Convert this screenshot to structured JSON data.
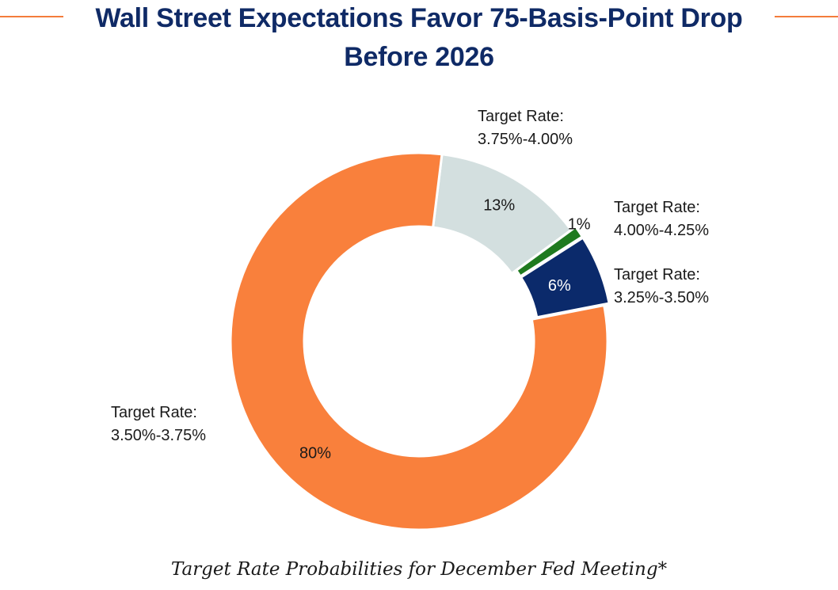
{
  "header": {
    "title_line1": "Wall Street Expectations Favor 75-Basis-Point Drop",
    "title_line2": "Before 2026"
  },
  "caption": "Target Rate Probabilities for December Fed Meeting*",
  "colors": {
    "title": "#0f2a66",
    "accent_rule": "#f47c3c"
  },
  "chart_data": {
    "type": "pie",
    "variant": "donut",
    "title": "Wall Street Expectations Favor 75-Basis-Point Drop Before 2026",
    "slices": [
      {
        "label_line1": "Target Rate:",
        "label_line2": "3.75%-4.00%",
        "value": 13,
        "value_label": "13%",
        "color": "#d3dfdf",
        "value_text_color": "#1a1a1a"
      },
      {
        "label_line1": "Target Rate:",
        "label_line2": "4.00%-4.25%",
        "value": 1,
        "value_label": "1%",
        "color": "#1f7a1f",
        "value_text_color": "#1a1a1a"
      },
      {
        "label_line1": "Target Rate:",
        "label_line2": "3.25%-3.50%",
        "value": 6,
        "value_label": "6%",
        "color": "#0b2a6b",
        "value_text_color": "#ffffff"
      },
      {
        "label_line1": "Target Rate:",
        "label_line2": "3.50%-3.75%",
        "value": 80,
        "value_label": "80%",
        "color": "#f9803c",
        "value_text_color": "#1a1a1a"
      }
    ]
  }
}
